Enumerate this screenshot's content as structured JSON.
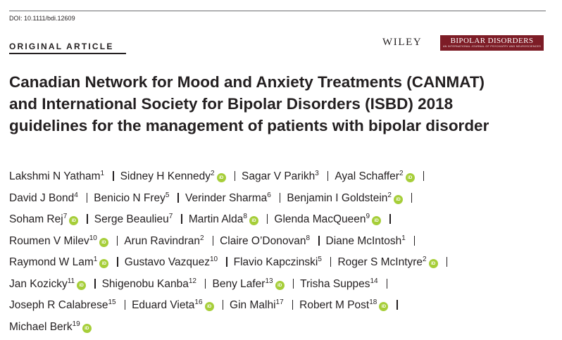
{
  "header": {
    "doi": "DOI: 10.1111/bdi.12609",
    "article_type": "ORIGINAL ARTICLE",
    "publisher": "WILEY",
    "journal_name": "BIPOLAR DISORDERS",
    "journal_subtitle": "AN INTERNATIONAL JOURNAL OF PSYCHIATRY AND NEUROSCIENCES",
    "journal_color": "#7d1c26"
  },
  "title_lines": [
    "Canadian Network for Mood and Anxiety Treatments (CANMAT)",
    "and International Society for Bipolar Disorders (ISBD) 2018",
    "guidelines for the management of patients with bipolar disorder"
  ],
  "orcid": {
    "label": "iD",
    "color": "#a6ce39"
  },
  "author_lines": [
    [
      {
        "name": "Lakshmi N Yatham",
        "aff": "1",
        "orcid": false
      },
      {
        "name": "Sidney H Kennedy",
        "aff": "2",
        "orcid": true
      },
      {
        "name": "Sagar V Parikh",
        "aff": "3",
        "orcid": false
      },
      {
        "name": "Ayal Schaffer",
        "aff": "2",
        "orcid": true
      }
    ],
    [
      {
        "name": "David J Bond",
        "aff": "4",
        "orcid": false
      },
      {
        "name": "Benicio N Frey",
        "aff": "5",
        "orcid": false
      },
      {
        "name": "Verinder Sharma",
        "aff": "6",
        "orcid": false
      },
      {
        "name": "Benjamin I Goldstein",
        "aff": "2",
        "orcid": true
      }
    ],
    [
      {
        "name": "Soham Rej",
        "aff": "7",
        "orcid": true
      },
      {
        "name": "Serge Beaulieu",
        "aff": "7",
        "orcid": false
      },
      {
        "name": "Martin Alda",
        "aff": "8",
        "orcid": true
      },
      {
        "name": "Glenda MacQueen",
        "aff": "9",
        "orcid": true
      }
    ],
    [
      {
        "name": "Roumen V Milev",
        "aff": "10",
        "orcid": true
      },
      {
        "name": "Arun Ravindran",
        "aff": "2",
        "orcid": false
      },
      {
        "name": "Claire O’Donovan",
        "aff": "8",
        "orcid": false
      },
      {
        "name": "Diane McIntosh",
        "aff": "1",
        "orcid": false
      }
    ],
    [
      {
        "name": "Raymond W Lam",
        "aff": "1",
        "orcid": true
      },
      {
        "name": "Gustavo Vazquez",
        "aff": "10",
        "orcid": false
      },
      {
        "name": "Flavio Kapczinski",
        "aff": "5",
        "orcid": false
      },
      {
        "name": "Roger S McIntyre",
        "aff": "2",
        "orcid": true
      }
    ],
    [
      {
        "name": "Jan Kozicky",
        "aff": "11",
        "orcid": true
      },
      {
        "name": "Shigenobu Kanba",
        "aff": "12",
        "orcid": false
      },
      {
        "name": "Beny Lafer",
        "aff": "13",
        "orcid": true
      },
      {
        "name": "Trisha Suppes",
        "aff": "14",
        "orcid": false
      }
    ],
    [
      {
        "name": "Joseph R Calabrese",
        "aff": "15",
        "orcid": false
      },
      {
        "name": "Eduard Vieta",
        "aff": "16",
        "orcid": true
      },
      {
        "name": "Gin Malhi",
        "aff": "17",
        "orcid": false
      },
      {
        "name": "Robert M Post",
        "aff": "18",
        "orcid": true
      }
    ],
    [
      {
        "name": "Michael Berk",
        "aff": "19",
        "orcid": true
      }
    ]
  ]
}
